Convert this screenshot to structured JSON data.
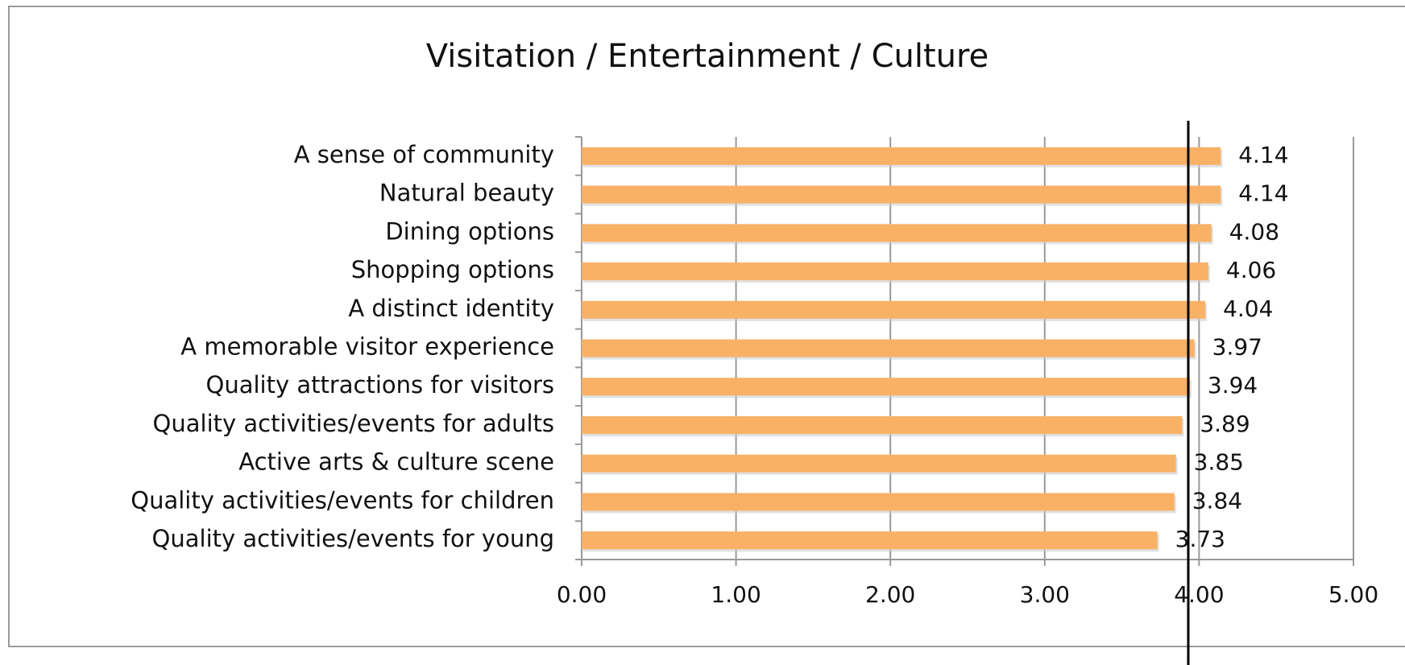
{
  "chart_data": {
    "type": "hbar",
    "title": "Visitation / Entertainment / Culture",
    "categories": [
      "A sense of community",
      "Natural beauty",
      "Dining options",
      "Shopping options",
      "A distinct identity",
      "A memorable visitor experience",
      "Quality attractions for visitors",
      "Quality activities/events for adults",
      "Active arts & culture scene",
      "Quality activities/events for children",
      "Quality activities/events for young"
    ],
    "values": [
      4.14,
      4.14,
      4.08,
      4.06,
      4.04,
      3.97,
      3.94,
      3.89,
      3.85,
      3.84,
      3.73
    ],
    "color": "#f9b166",
    "xlim": [
      0,
      5
    ],
    "xticks": [
      {
        "value": 0,
        "label": "0.00"
      },
      {
        "value": 1,
        "label": "1.00"
      },
      {
        "value": 2,
        "label": "2.00"
      },
      {
        "value": 3,
        "label": "3.00"
      },
      {
        "value": 4,
        "label": "4.00"
      },
      {
        "value": 5,
        "label": "5.00"
      }
    ],
    "grid": true,
    "reference_value": 3.93
  }
}
